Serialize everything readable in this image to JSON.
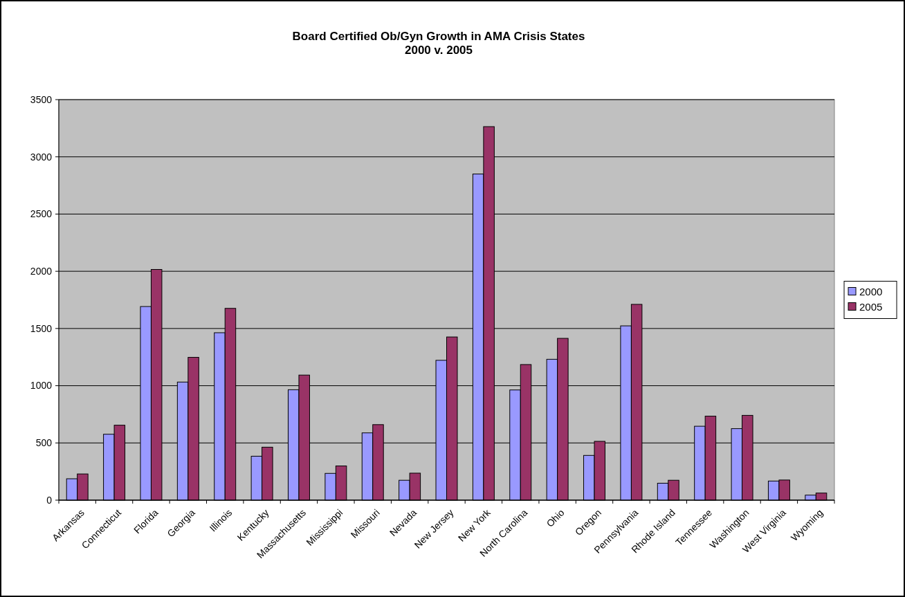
{
  "chart_data": {
    "type": "bar",
    "title": "Board Certified Ob/Gyn Growth in AMA Crisis States\n2000 v. 2005",
    "categories": [
      "Arkansas",
      "Connecticut",
      "Florida",
      "Georgia",
      "Illinois",
      "Kentucky",
      "Massachusetts",
      "Mississippi",
      "Missouri",
      "Nevada",
      "New Jersey",
      "New York",
      "North Carolina",
      "Ohio",
      "Oregon",
      "Pennsylvania",
      "Rhode Island",
      "Tennessee",
      "Washington",
      "West Virginia",
      "Wyoming"
    ],
    "series": [
      {
        "name": "2000",
        "color": "#9999ff",
        "values": [
          187,
          576,
          1692,
          1032,
          1463,
          384,
          965,
          234,
          588,
          174,
          1222,
          2850,
          963,
          1231,
          391,
          1523,
          148,
          646,
          625,
          167,
          44
        ]
      },
      {
        "name": "2005",
        "color": "#993366",
        "values": [
          229,
          655,
          2016,
          1248,
          1676,
          463,
          1093,
          299,
          660,
          236,
          1426,
          3264,
          1185,
          1414,
          514,
          1711,
          174,
          734,
          741,
          176,
          62
        ]
      }
    ],
    "ylim": [
      0,
      3500
    ],
    "yticks": [
      0,
      500,
      1000,
      1500,
      2000,
      2500,
      3000,
      3500
    ],
    "grid": "y",
    "legend": "right"
  }
}
